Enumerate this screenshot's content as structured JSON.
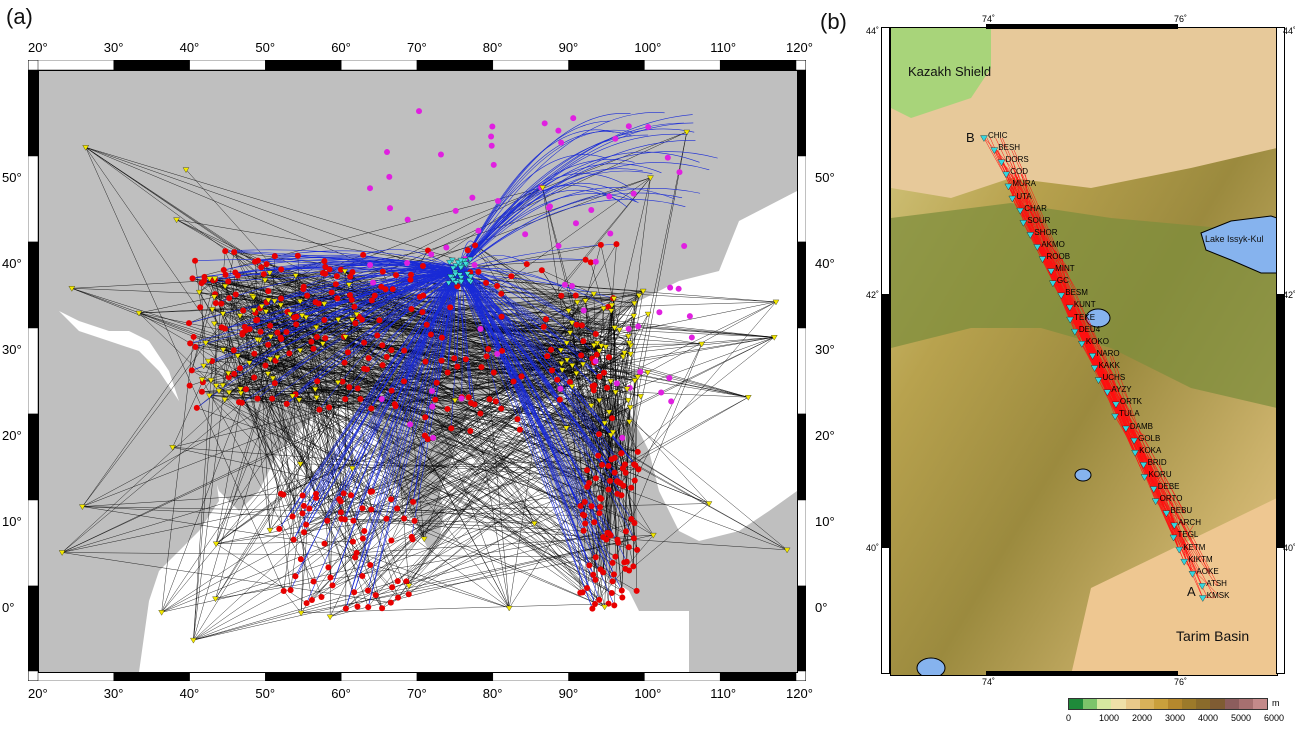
{
  "panels": {
    "a": {
      "letter": "(a)",
      "lon_ticks": [
        "20°",
        "30°",
        "40°",
        "50°",
        "60°",
        "70°",
        "80°",
        "90°",
        "100°",
        "110°",
        "120°"
      ],
      "lat_ticks_left": [
        "0°",
        "10°",
        "20°",
        "30°",
        "40°",
        "50°"
      ],
      "lat_ticks_right": [
        "0°",
        "10°",
        "20°",
        "30°",
        "40°",
        "50°"
      ]
    },
    "b": {
      "letter": "(b)",
      "top_lon": [
        "74˚",
        "76˚"
      ],
      "bottom_lon": [
        "74˚",
        "76˚"
      ],
      "lat_left": [
        "44˚",
        "42˚",
        "40˚"
      ],
      "lat_right": [
        "44˚",
        "42˚",
        "40˚"
      ],
      "regions": {
        "kazakh": "Kazakh Shield",
        "issyk": "Lake Issyk-Kul",
        "tarim": "Tarim Basin"
      },
      "end_labels": {
        "a": "A",
        "b": "B"
      },
      "stations": [
        "CHIC",
        "BESH",
        "DORS",
        "COD",
        "MURA",
        "UTA",
        "CHAR",
        "SOUR",
        "SHOR",
        "AKMO",
        "ROOB",
        "MINT",
        "GC",
        "BESM",
        "KUNT",
        "TEKE",
        "DEU4",
        "KOKO",
        "NARO",
        "KAKK",
        "UCHS",
        "AYZY",
        "ORTK",
        "TULA",
        "DAMB",
        "GOLB",
        "KOKA",
        "BRID",
        "KORU",
        "DEBE",
        "ORTO",
        "BEBU",
        "ARCH",
        "TEGL",
        "KETM",
        "KIKTM",
        "AOKE",
        "ATSH",
        "KMSK"
      ],
      "colorbar": {
        "unit": "m",
        "ticks": [
          "0",
          "1000",
          "2000",
          "3000",
          "4000",
          "5000",
          "6000"
        ],
        "colors": [
          "#1f8a3a",
          "#7cc46a",
          "#d6e8a0",
          "#efe0a8",
          "#e9c98a",
          "#d8b25a",
          "#c9a03c",
          "#b5882d",
          "#9c7a2a",
          "#8a6b2b",
          "#7f5c33",
          "#8c5d5d",
          "#a77070",
          "#c48a8a"
        ]
      }
    }
  }
}
